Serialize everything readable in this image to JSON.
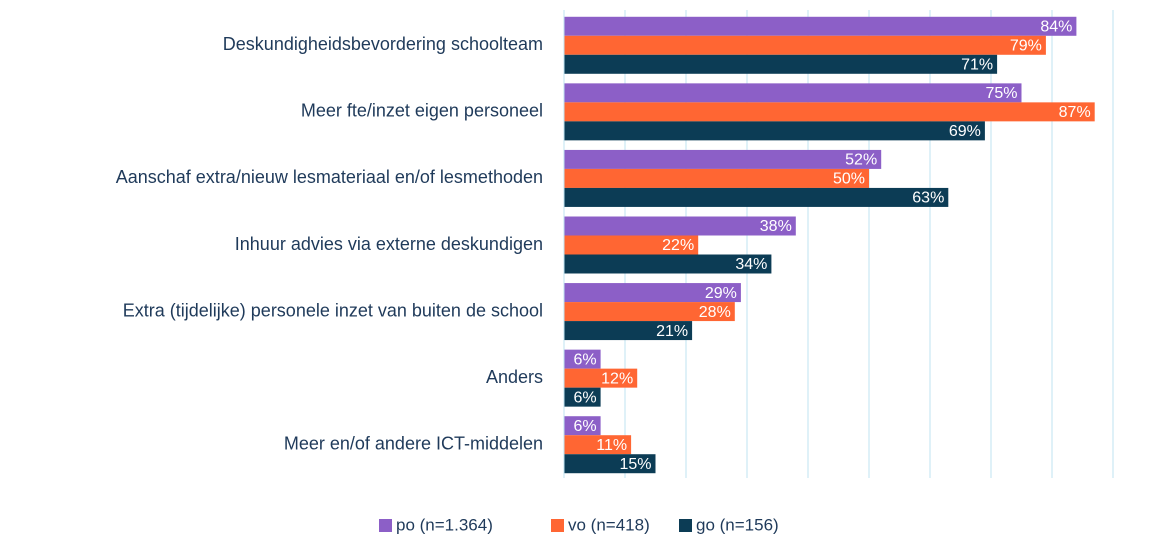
{
  "chart_data": {
    "type": "hbar",
    "categories": [
      "Deskundigheidsbevordering schoolteam",
      "Meer fte/inzet eigen personeel",
      "Aanschaf extra/nieuw lesmateriaal en/of lesmethoden",
      "Inhuur advies via externe deskundigen",
      "Extra (tijdelijke) personele inzet van buiten de school",
      "Anders",
      "Meer en/of andere ICT-middelen"
    ],
    "series": [
      {
        "name": "po (n=1.364)",
        "color": "#8c5fc7",
        "values": [
          84,
          75,
          52,
          38,
          29,
          6,
          6
        ],
        "value_labels": [
          "84%",
          "75%",
          "52%",
          "38%",
          "29%",
          "6%",
          "6%"
        ]
      },
      {
        "name": "vo (n=418)",
        "color": "#ff6633",
        "values": [
          79,
          87,
          50,
          22,
          28,
          12,
          11
        ],
        "value_labels": [
          "79%",
          "87%",
          "50%",
          "22%",
          "28%",
          "12%",
          "11%"
        ]
      },
      {
        "name": "go (n=156)",
        "color": "#0c3c55",
        "values": [
          71,
          69,
          63,
          34,
          21,
          6,
          15
        ],
        "value_labels": [
          "71%",
          "69%",
          "63%",
          "34%",
          "21%",
          "6%",
          "15%"
        ]
      }
    ],
    "xlim": [
      0,
      90
    ],
    "xticks": [
      0,
      10,
      20,
      30,
      40,
      50,
      60,
      70,
      80,
      90
    ],
    "grid": true,
    "legend": "bottom"
  }
}
